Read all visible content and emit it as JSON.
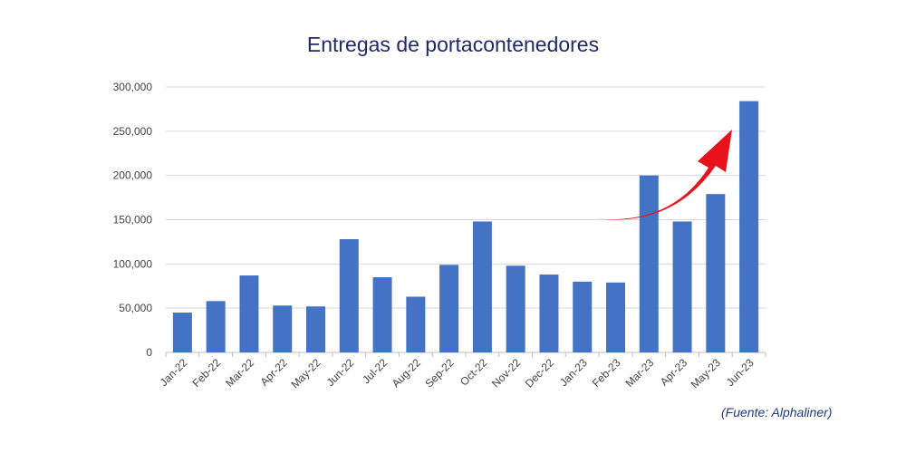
{
  "chart_data": {
    "type": "bar",
    "title": "Entregas de portacontenedores",
    "categories": [
      "Jan-22",
      "Feb-22",
      "Mar-22",
      "Apr-22",
      "May-22",
      "Jun-22",
      "Jul-22",
      "Aug-22",
      "Sep-22",
      "Oct-22",
      "Nov-22",
      "Dec-22",
      "Jan-23",
      "Feb-23",
      "Mar-23",
      "Apr-23",
      "May-23",
      "Jun-23"
    ],
    "values": [
      45000,
      58000,
      87000,
      53000,
      52000,
      128000,
      85000,
      63000,
      99000,
      148000,
      98000,
      88000,
      80000,
      79000,
      200000,
      148000,
      179000,
      284000
    ],
    "ylim": [
      0,
      300000
    ],
    "yticks": [
      "0",
      "50,000",
      "100,000",
      "150,000",
      "200,000",
      "250,000",
      "300,000"
    ],
    "grid": true,
    "bar_color": "#4472c4",
    "annotation_arrow_color": "#e8121c",
    "source": "(Fuente: Alphaliner)"
  }
}
